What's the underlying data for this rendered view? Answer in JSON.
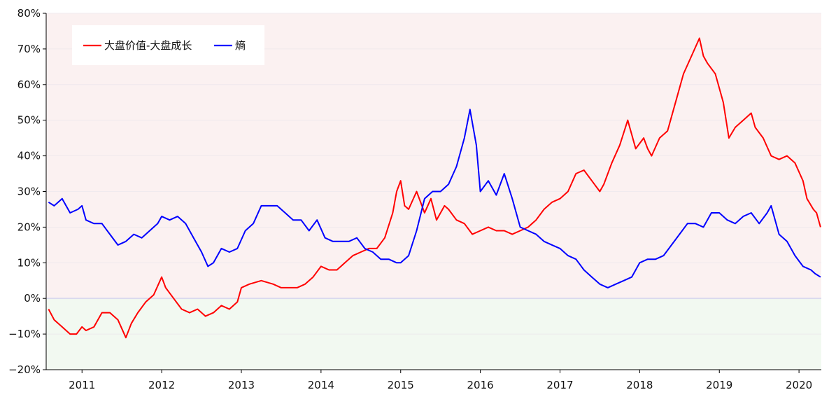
{
  "chart_data": {
    "type": "line",
    "title": "",
    "xlabel": "",
    "ylabel": "",
    "ylim": [
      -20,
      80
    ],
    "xlim": [
      2010.55,
      2020.28
    ],
    "y_ticks": [
      -20,
      -10,
      0,
      10,
      20,
      30,
      40,
      50,
      60,
      70,
      80
    ],
    "y_tick_labels": [
      "−20%",
      "−10%",
      "0%",
      "10%",
      "20%",
      "30%",
      "40%",
      "50%",
      "60%",
      "70%",
      "80%"
    ],
    "x_ticks": [
      2011,
      2012,
      2013,
      2014,
      2015,
      2016,
      2017,
      2018,
      2019,
      2020
    ],
    "x_tick_labels": [
      "2011",
      "2012",
      "2013",
      "2014",
      "2015",
      "2016",
      "2017",
      "2018",
      "2019",
      "2020"
    ],
    "grid": "horizontal",
    "legend": "top-left",
    "background": {
      "positive_fill": "#fbf1f1",
      "negative_fill": "#f2f9f1",
      "zero_line": "#d9d9ee"
    },
    "series": [
      {
        "name": "大盘价值-大盘成长",
        "color": "#ff0000",
        "x": [
          2010.58,
          2010.65,
          2010.75,
          2010.85,
          2010.93,
          2011.0,
          2011.05,
          2011.15,
          2011.25,
          2011.35,
          2011.45,
          2011.55,
          2011.62,
          2011.7,
          2011.8,
          2011.9,
          2012.0,
          2012.05,
          2012.15,
          2012.25,
          2012.35,
          2012.45,
          2012.55,
          2012.65,
          2012.75,
          2012.85,
          2012.95,
          2013.0,
          2013.1,
          2013.25,
          2013.4,
          2013.5,
          2013.6,
          2013.7,
          2013.8,
          2013.9,
          2014.0,
          2014.1,
          2014.2,
          2014.3,
          2014.4,
          2014.5,
          2014.6,
          2014.7,
          2014.8,
          2014.9,
          2014.95,
          2015.0,
          2015.05,
          2015.1,
          2015.2,
          2015.3,
          2015.38,
          2015.45,
          2015.55,
          2015.6,
          2015.7,
          2015.8,
          2015.9,
          2016.0,
          2016.1,
          2016.2,
          2016.3,
          2016.4,
          2016.5,
          2016.6,
          2016.7,
          2016.8,
          2016.9,
          2017.0,
          2017.1,
          2017.2,
          2017.3,
          2017.4,
          2017.5,
          2017.55,
          2017.65,
          2017.75,
          2017.85,
          2017.95,
          2018.05,
          2018.1,
          2018.15,
          2018.25,
          2018.35,
          2018.45,
          2018.55,
          2018.65,
          2018.75,
          2018.8,
          2018.85,
          2018.95,
          2019.05,
          2019.12,
          2019.2,
          2019.3,
          2019.4,
          2019.45,
          2019.55,
          2019.65,
          2019.75,
          2019.85,
          2019.95,
          2020.05,
          2020.1,
          2020.18,
          2020.22,
          2020.27
        ],
        "values": [
          -3,
          -6,
          -8,
          -10,
          -10,
          -8,
          -9,
          -8,
          -4,
          -4,
          -6,
          -11,
          -7,
          -4,
          -1,
          1,
          6,
          3,
          0,
          -3,
          -4,
          -3,
          -5,
          -4,
          -2,
          -3,
          -1,
          3,
          4,
          5,
          4,
          3,
          3,
          3,
          4,
          6,
          9,
          8,
          8,
          10,
          12,
          13,
          14,
          14,
          17,
          24,
          30,
          33,
          26,
          25,
          30,
          24,
          28,
          22,
          26,
          25,
          22,
          21,
          18,
          19,
          20,
          19,
          19,
          18,
          19,
          20,
          22,
          25,
          27,
          28,
          30,
          35,
          36,
          33,
          30,
          32,
          38,
          43,
          50,
          42,
          45,
          42,
          40,
          45,
          47,
          55,
          63,
          68,
          73,
          68,
          66,
          63,
          55,
          45,
          48,
          50,
          52,
          48,
          45,
          40,
          39,
          40,
          38,
          33,
          28,
          25,
          24,
          20
        ]
      },
      {
        "name": "熵",
        "color": "#0000ff",
        "x": [
          2010.58,
          2010.65,
          2010.75,
          2010.85,
          2010.95,
          2011.0,
          2011.05,
          2011.15,
          2011.25,
          2011.35,
          2011.45,
          2011.55,
          2011.65,
          2011.75,
          2011.85,
          2011.95,
          2012.0,
          2012.1,
          2012.2,
          2012.3,
          2012.4,
          2012.5,
          2012.58,
          2012.65,
          2012.75,
          2012.85,
          2012.95,
          2013.05,
          2013.15,
          2013.25,
          2013.35,
          2013.45,
          2013.55,
          2013.65,
          2013.75,
          2013.85,
          2013.95,
          2014.05,
          2014.15,
          2014.25,
          2014.35,
          2014.45,
          2014.55,
          2014.65,
          2014.75,
          2014.85,
          2014.95,
          2015.0,
          2015.1,
          2015.2,
          2015.3,
          2015.4,
          2015.5,
          2015.6,
          2015.7,
          2015.8,
          2015.87,
          2015.95,
          2016.0,
          2016.1,
          2016.2,
          2016.3,
          2016.4,
          2016.5,
          2016.6,
          2016.7,
          2016.8,
          2016.9,
          2017.0,
          2017.1,
          2017.2,
          2017.3,
          2017.4,
          2017.5,
          2017.6,
          2017.7,
          2017.8,
          2017.9,
          2018.0,
          2018.1,
          2018.2,
          2018.3,
          2018.4,
          2018.5,
          2018.6,
          2018.7,
          2018.8,
          2018.9,
          2019.0,
          2019.1,
          2019.2,
          2019.3,
          2019.4,
          2019.5,
          2019.6,
          2019.65,
          2019.75,
          2019.85,
          2019.95,
          2020.05,
          2020.15,
          2020.2,
          2020.27
        ],
        "values": [
          27,
          26,
          28,
          24,
          25,
          26,
          22,
          21,
          21,
          18,
          15,
          16,
          18,
          17,
          19,
          21,
          23,
          22,
          23,
          21,
          17,
          13,
          9,
          10,
          14,
          13,
          14,
          19,
          21,
          26,
          26,
          26,
          24,
          22,
          22,
          19,
          22,
          17,
          16,
          16,
          16,
          17,
          14,
          13,
          11,
          11,
          10,
          10,
          12,
          19,
          28,
          30,
          30,
          32,
          37,
          45,
          53,
          43,
          30,
          33,
          29,
          35,
          28,
          20,
          19,
          18,
          16,
          15,
          14,
          12,
          11,
          8,
          6,
          4,
          3,
          4,
          5,
          6,
          10,
          11,
          11,
          12,
          15,
          18,
          21,
          21,
          20,
          24,
          24,
          22,
          21,
          23,
          24,
          21,
          24,
          26,
          18,
          16,
          12,
          9,
          8,
          7,
          6
        ]
      }
    ]
  }
}
